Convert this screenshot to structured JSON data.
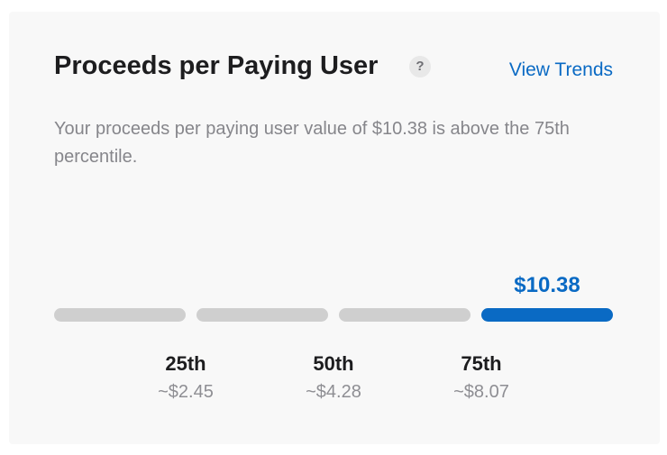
{
  "card": {
    "title": "Proceeds per Paying User",
    "help_icon": "?",
    "view_trends_link": "View Trends",
    "description": "Your proceeds per paying user value of $10.38 is above the 75th percentile."
  },
  "benchmark": {
    "current_value": "$10.38",
    "active_segment": 4,
    "segments": 4,
    "percentiles": [
      {
        "label": "25th",
        "value": "~$2.45"
      },
      {
        "label": "50th",
        "value": "~$4.28"
      },
      {
        "label": "75th",
        "value": "~$8.07"
      }
    ]
  },
  "colors": {
    "accent": "#0a6ac4",
    "bar_inactive": "#cfcfcf",
    "card_background": "#f8f8f8",
    "title_text": "#1d1d1f",
    "secondary_text": "#86868b"
  }
}
